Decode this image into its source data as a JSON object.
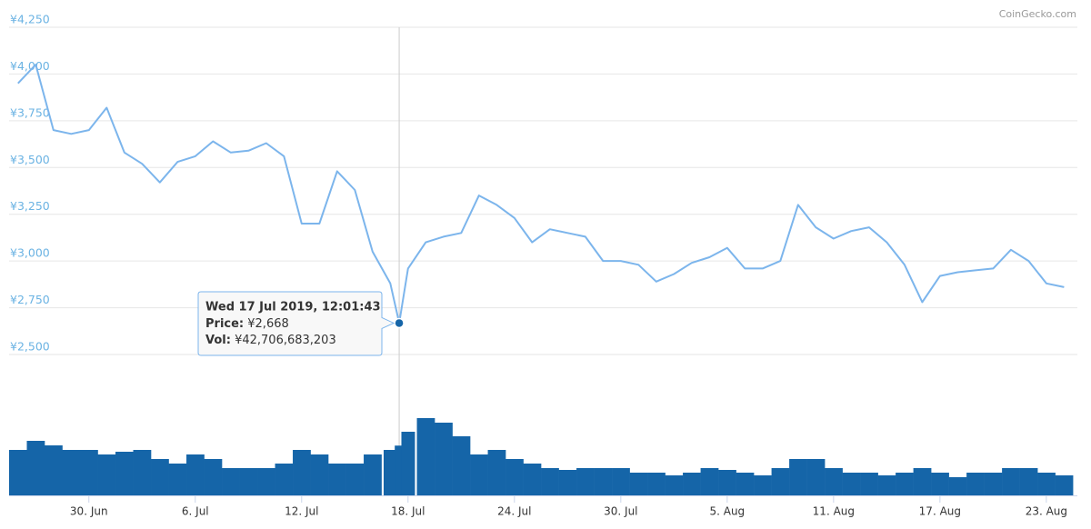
{
  "chart_data": {
    "type": "line",
    "credit": "CoinGecko.com",
    "x": [
      "2019-06-26",
      "2019-06-27",
      "2019-06-28",
      "2019-06-29",
      "2019-06-30",
      "2019-07-01",
      "2019-07-02",
      "2019-07-03",
      "2019-07-04",
      "2019-07-05",
      "2019-07-06",
      "2019-07-07",
      "2019-07-08",
      "2019-07-09",
      "2019-07-10",
      "2019-07-11",
      "2019-07-12",
      "2019-07-13",
      "2019-07-14",
      "2019-07-15",
      "2019-07-16",
      "2019-07-17",
      "2019-07-17T12:01:43",
      "2019-07-18",
      "2019-07-19",
      "2019-07-20",
      "2019-07-21",
      "2019-07-22",
      "2019-07-23",
      "2019-07-24",
      "2019-07-25",
      "2019-07-26",
      "2019-07-27",
      "2019-07-28",
      "2019-07-29",
      "2019-07-30",
      "2019-07-31",
      "2019-08-01",
      "2019-08-02",
      "2019-08-03",
      "2019-08-04",
      "2019-08-05",
      "2019-08-06",
      "2019-08-07",
      "2019-08-08",
      "2019-08-09",
      "2019-08-10",
      "2019-08-11",
      "2019-08-12",
      "2019-08-13",
      "2019-08-14",
      "2019-08-15",
      "2019-08-16",
      "2019-08-17",
      "2019-08-18",
      "2019-08-19",
      "2019-08-20",
      "2019-08-21",
      "2019-08-22",
      "2019-08-23",
      "2019-08-24"
    ],
    "series": [
      {
        "color": "#7cb5ec",
        "values": [
          3950,
          4050,
          3700,
          3680,
          3700,
          3820,
          3580,
          3520,
          3420,
          3530,
          3560,
          3640,
          3580,
          3590,
          3630,
          3560,
          3200,
          3200,
          3480,
          3380,
          3050,
          2880,
          2668,
          2960,
          3100,
          3130,
          3150,
          3350,
          3300,
          3230,
          3100,
          3170,
          3150,
          3130,
          3000,
          3000,
          2980,
          2890,
          2930,
          2990,
          3020,
          3070,
          2960,
          2960,
          3000,
          3300,
          3180,
          3120,
          3160,
          3180,
          3100,
          2980,
          2780,
          2920,
          2940,
          2950,
          2960,
          3060,
          3000,
          2880,
          2860
        ]
      },
      {
        "color": "#1565a8",
        "axis": "y2",
        "values": [
          39000000000,
          46800000000,
          42900000000,
          39000000000,
          39000000000,
          35100000000,
          37440000000,
          39000000000,
          31200000000,
          27300000000,
          35100000000,
          31200000000,
          23400000000,
          23400000000,
          23400000000,
          27300000000,
          39000000000,
          35100000000,
          27300000000,
          27300000000,
          35100000000,
          39000000000,
          42706683203,
          54600000000,
          66300000000,
          62400000000,
          50700000000,
          35100000000,
          39000000000,
          31200000000,
          27300000000,
          23400000000,
          21840000000,
          23400000000,
          23400000000,
          23400000000,
          19500000000,
          19500000000,
          17160000000,
          19500000000,
          23400000000,
          21840000000,
          19500000000,
          17160000000,
          23400000000,
          31200000000,
          31200000000,
          23400000000,
          19500000000,
          19500000000,
          17160000000,
          19500000000,
          23400000000,
          19500000000,
          15600000000,
          19500000000,
          19500000000,
          23400000000,
          23400000000,
          19500000000,
          17160000000
        ]
      }
    ],
    "xlim": [
      "2019-06-25T12:00:00",
      "2019-08-24T18:00:00"
    ],
    "xticks": [
      {
        "value": "2019-06-30",
        "label": "30. Jun"
      },
      {
        "value": "2019-07-06",
        "label": "6. Jul"
      },
      {
        "value": "2019-07-12",
        "label": "12. Jul"
      },
      {
        "value": "2019-07-18",
        "label": "18. Jul"
      },
      {
        "value": "2019-07-24",
        "label": "24. Jul"
      },
      {
        "value": "2019-07-30",
        "label": "30. Jul"
      },
      {
        "value": "2019-08-05",
        "label": "5. Aug"
      },
      {
        "value": "2019-08-11",
        "label": "11. Aug"
      },
      {
        "value": "2019-08-17",
        "label": "17. Aug"
      },
      {
        "value": "2019-08-23",
        "label": "23. Aug"
      }
    ],
    "ylim": [
      2500,
      4250
    ],
    "yticks": [
      {
        "value": 2500,
        "label": "¥2,500"
      },
      {
        "value": 2750,
        "label": "¥2,750"
      },
      {
        "value": 3000,
        "label": "¥3,000"
      },
      {
        "value": 3250,
        "label": "¥3,250"
      },
      {
        "value": 3500,
        "label": "¥3,500"
      },
      {
        "value": 3750,
        "label": "¥3,750"
      },
      {
        "value": 4000,
        "label": "¥4,000"
      },
      {
        "value": 4250,
        "label": "¥4,250"
      }
    ],
    "y2lim": [
      0,
      101400000000
    ],
    "grid": true,
    "tooltip": {
      "x": "2019-07-17T12:01:43",
      "date": "Wed 17 Jul 2019, 12:01:43",
      "price_label": "Price:",
      "price": "¥2,668",
      "vol_label": "Vol:",
      "vol": "¥42,706,683,203"
    }
  }
}
